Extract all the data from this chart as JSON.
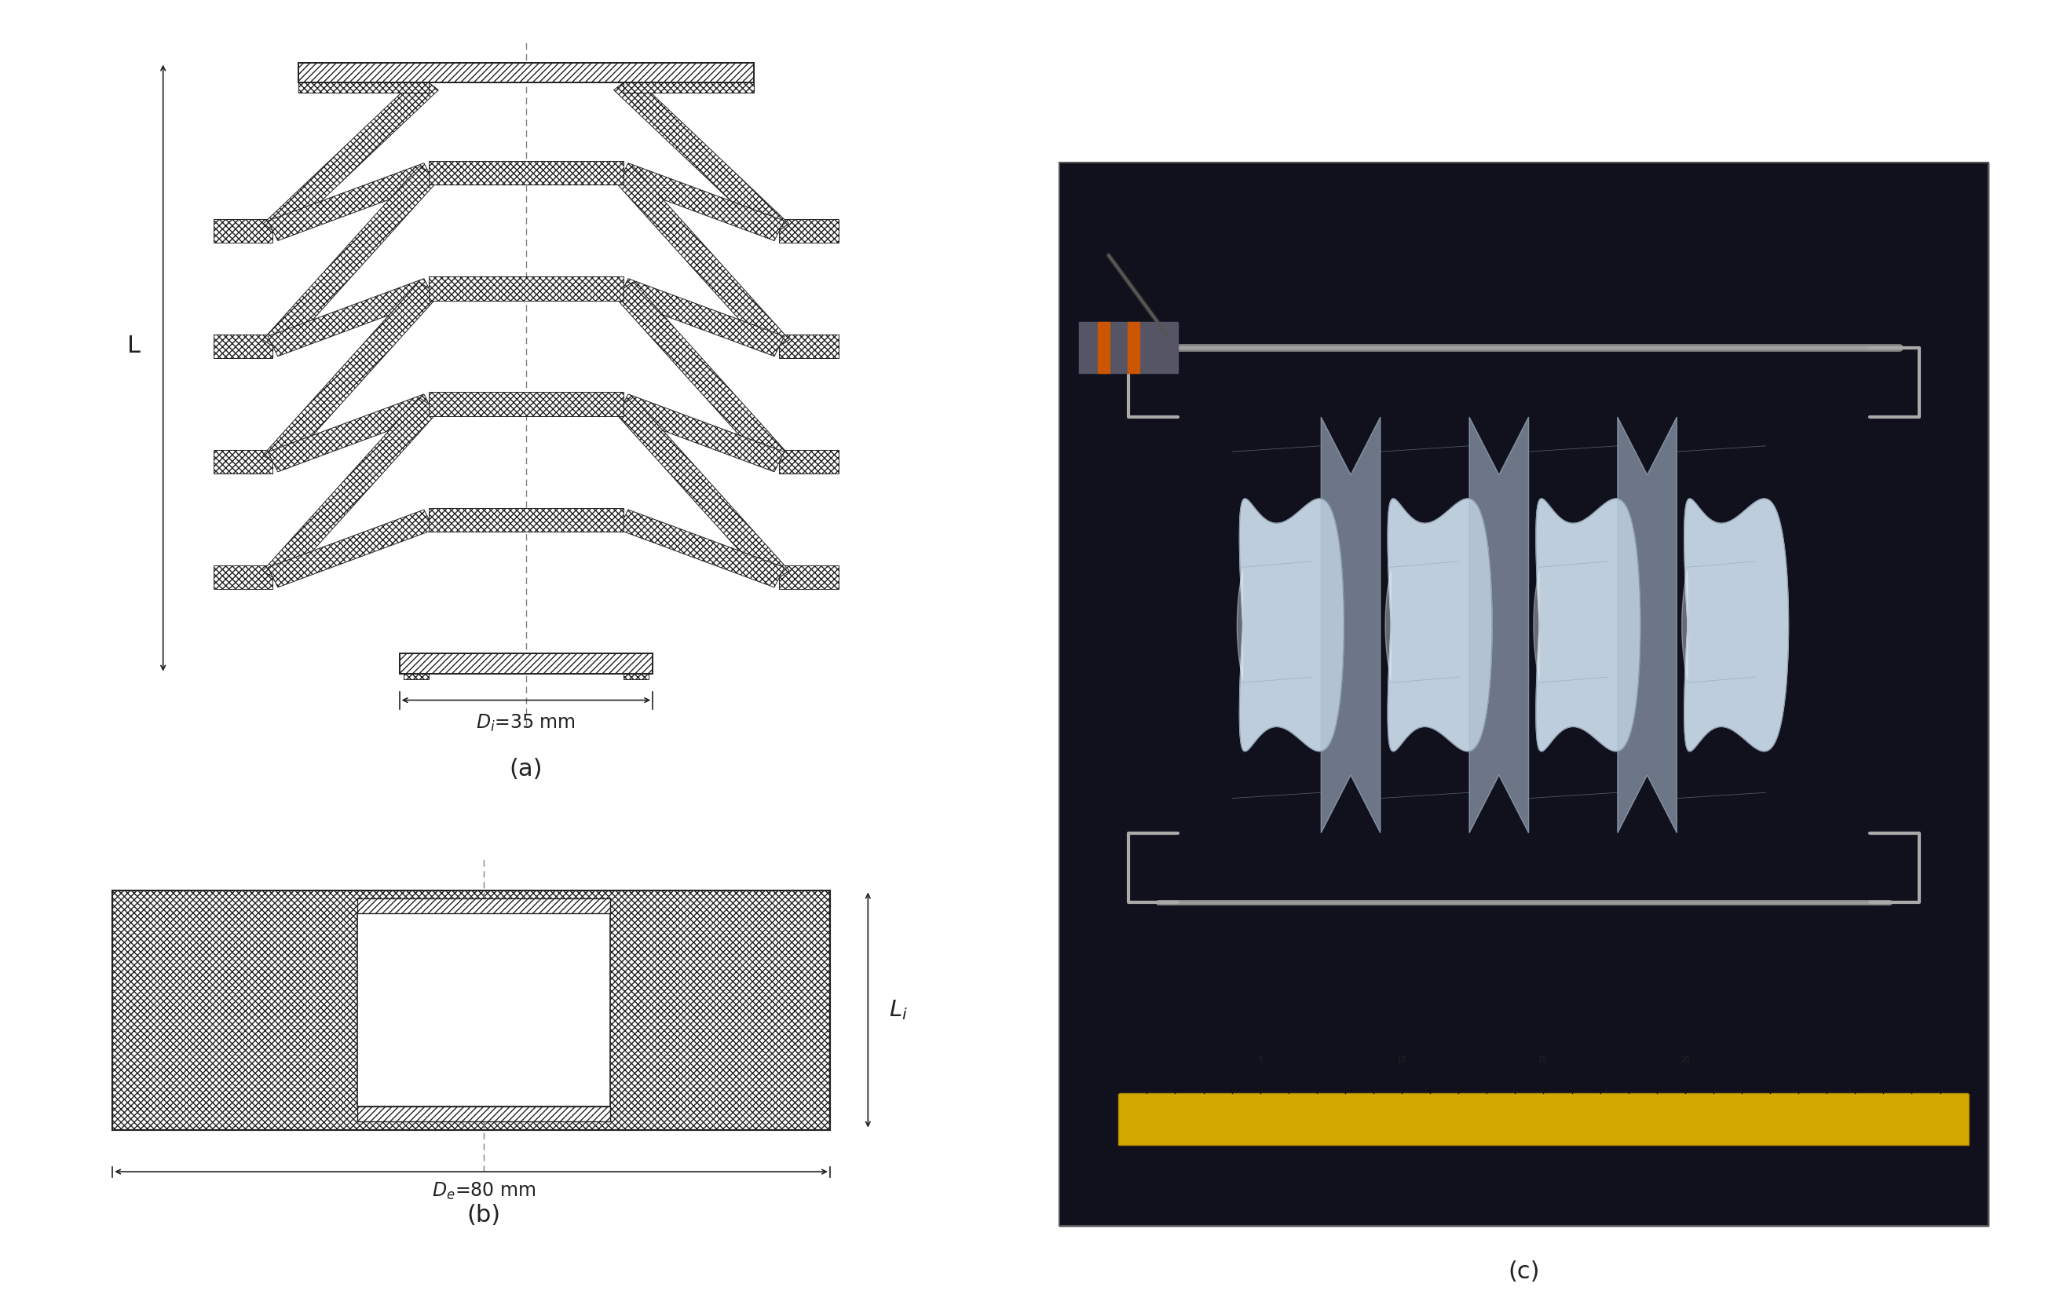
{
  "bg_color": "#ffffff",
  "label_a": "(a)",
  "label_b": "(b)",
  "label_c": "(c)",
  "line_color": "#222222",
  "photo_bg": "#111111",
  "photo_border": "#666666"
}
